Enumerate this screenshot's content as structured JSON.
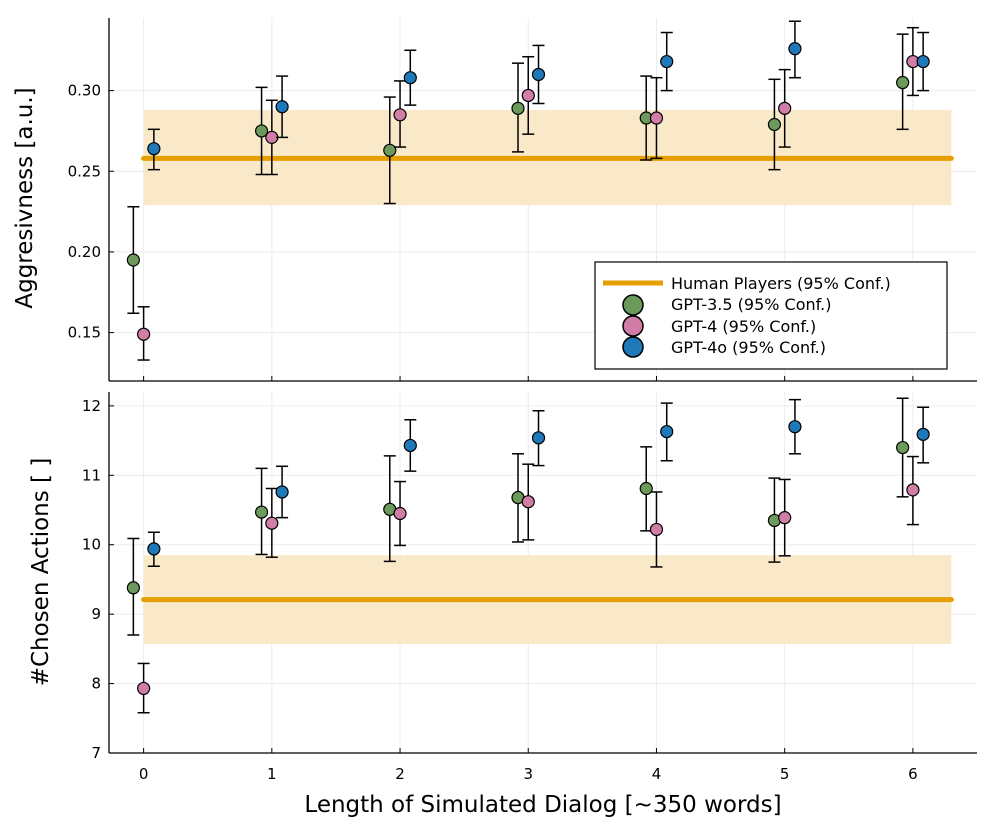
{
  "colors": {
    "human": "#e69f00",
    "band": "#f9e9c9",
    "gpt35": "#6b9a5b",
    "gpt4": "#d07ea8",
    "gpt4o": "#1f78b7",
    "grid": "#ececec"
  },
  "chart_data": [
    {
      "type": "scatter",
      "panel": "top",
      "ylabel": "Aggresivness [a.u.]",
      "xlim": [
        -0.27,
        6.5
      ],
      "ylim": [
        0.12,
        0.345
      ],
      "xticks": [
        "0",
        "1",
        "2",
        "3",
        "4",
        "5",
        "6"
      ],
      "yticks": [
        "0.15",
        "0.20",
        "0.25",
        "0.30"
      ],
      "grid": true,
      "legend_position": "bottom-right",
      "human": {
        "name": "Human Players (95% Conf.)",
        "value": 0.258,
        "lower": 0.229,
        "upper": 0.288,
        "x_range": [
          0,
          6.3
        ]
      },
      "series": [
        {
          "name": "GPT-3.5 (95% Conf.)",
          "color_key": "gpt35",
          "x_offset": -0.08,
          "x": [
            0,
            1,
            2,
            3,
            4,
            5,
            6
          ],
          "y": [
            0.195,
            0.275,
            0.263,
            0.289,
            0.283,
            0.279,
            0.305
          ],
          "lower": [
            0.162,
            0.248,
            0.23,
            0.262,
            0.257,
            0.251,
            0.276
          ],
          "upper": [
            0.228,
            0.302,
            0.296,
            0.317,
            0.309,
            0.307,
            0.335
          ]
        },
        {
          "name": "GPT-4 (95% Conf.)",
          "color_key": "gpt4",
          "x_offset": 0.0,
          "x": [
            0,
            1,
            2,
            3,
            4,
            5,
            6
          ],
          "y": [
            0.149,
            0.271,
            0.285,
            0.297,
            0.283,
            0.289,
            0.318
          ],
          "lower": [
            0.133,
            0.248,
            0.265,
            0.273,
            0.258,
            0.265,
            0.297
          ],
          "upper": [
            0.166,
            0.294,
            0.306,
            0.321,
            0.308,
            0.313,
            0.339
          ]
        },
        {
          "name": "GPT-4o (95% Conf.)",
          "color_key": "gpt4o",
          "x_offset": 0.08,
          "x": [
            0,
            1,
            2,
            3,
            4,
            5,
            6
          ],
          "y": [
            0.264,
            0.29,
            0.308,
            0.31,
            0.318,
            0.326,
            0.318
          ],
          "lower": [
            0.251,
            0.271,
            0.291,
            0.292,
            0.3,
            0.308,
            0.3
          ],
          "upper": [
            0.276,
            0.309,
            0.325,
            0.328,
            0.336,
            0.343,
            0.336
          ]
        }
      ]
    },
    {
      "type": "scatter",
      "panel": "bottom",
      "xlabel": "Length of Simulated Dialog [~350 words]",
      "ylabel": "#Chosen Actions [ ]",
      "xlim": [
        -0.27,
        6.5
      ],
      "ylim": [
        7.0,
        12.2
      ],
      "xticks": [
        "0",
        "1",
        "2",
        "3",
        "4",
        "5",
        "6"
      ],
      "yticks": [
        "7",
        "8",
        "9",
        "10",
        "11",
        "12"
      ],
      "grid": true,
      "human": {
        "value": 9.21,
        "lower": 8.57,
        "upper": 9.85,
        "x_range": [
          0,
          6.3
        ]
      },
      "series": [
        {
          "name": "GPT-3.5 (95% Conf.)",
          "color_key": "gpt35",
          "x_offset": -0.08,
          "x": [
            0,
            1,
            2,
            3,
            4,
            5,
            6
          ],
          "y": [
            9.38,
            10.47,
            10.51,
            10.68,
            10.81,
            10.35,
            11.4
          ],
          "lower": [
            8.7,
            9.86,
            9.76,
            10.04,
            10.2,
            9.75,
            10.69
          ],
          "upper": [
            10.09,
            11.1,
            11.28,
            11.31,
            11.41,
            10.96,
            12.11
          ]
        },
        {
          "name": "GPT-4 (95% Conf.)",
          "color_key": "gpt4",
          "x_offset": 0.0,
          "x": [
            0,
            1,
            2,
            3,
            4,
            5,
            6
          ],
          "y": [
            7.93,
            10.31,
            10.45,
            10.62,
            10.22,
            10.39,
            10.79
          ],
          "lower": [
            7.58,
            9.82,
            9.99,
            10.07,
            9.68,
            9.84,
            10.29
          ],
          "upper": [
            8.29,
            10.81,
            10.91,
            11.16,
            10.76,
            10.94,
            11.27
          ]
        },
        {
          "name": "GPT-4o (95% Conf.)",
          "color_key": "gpt4o",
          "x_offset": 0.08,
          "x": [
            0,
            1,
            2,
            3,
            4,
            5,
            6
          ],
          "y": [
            9.94,
            10.76,
            11.43,
            11.54,
            11.63,
            11.7,
            11.59
          ],
          "lower": [
            9.69,
            10.39,
            11.06,
            11.14,
            11.21,
            11.31,
            11.18
          ],
          "upper": [
            10.18,
            11.13,
            11.8,
            11.93,
            12.04,
            12.09,
            11.98
          ]
        }
      ]
    }
  ]
}
